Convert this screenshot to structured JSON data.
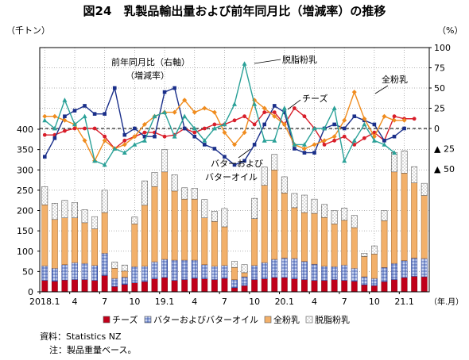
{
  "title": "図24　乳製品輸出量および前年同月比（増減率）の推移",
  "chart_data": {
    "type": "bar+line",
    "left_axis": {
      "unit": "（千トン）",
      "min": 0,
      "max": 400,
      "ticks": [
        0,
        50,
        100,
        150,
        200,
        250,
        300,
        350,
        400
      ]
    },
    "right_axis": {
      "unit": "（%）",
      "min": -50,
      "max": 100,
      "ticks": [
        100,
        75,
        50,
        25,
        0,
        -25,
        -50
      ],
      "tick_labels": [
        "100",
        "75",
        "50",
        "25",
        "0",
        "▲ 25",
        "▲ 50"
      ]
    },
    "x_labels": [
      {
        "index": 0,
        "label": "2018.1"
      },
      {
        "index": 3,
        "label": "4"
      },
      {
        "index": 6,
        "label": "7"
      },
      {
        "index": 9,
        "label": "10"
      },
      {
        "index": 12,
        "label": "19.1"
      },
      {
        "index": 15,
        "label": "4"
      },
      {
        "index": 18,
        "label": "7"
      },
      {
        "index": 21,
        "label": "10"
      },
      {
        "index": 24,
        "label": "20.1"
      },
      {
        "index": 27,
        "label": "4"
      },
      {
        "index": 30,
        "label": "7"
      },
      {
        "index": 33,
        "label": "10"
      },
      {
        "index": 36,
        "label": "21.1"
      }
    ],
    "x_unit": "（年.月）",
    "bar_series": [
      {
        "name": "チーズ",
        "color": "#c0001a",
        "values": [
          28,
          26,
          29,
          30,
          30,
          28,
          40,
          13,
          18,
          22,
          25,
          32,
          35,
          28,
          30,
          33,
          32,
          30,
          33,
          10,
          15,
          30,
          32,
          35,
          35,
          32,
          30,
          28,
          28,
          30,
          28,
          26,
          17,
          15,
          25,
          30,
          35,
          38,
          37
        ]
      },
      {
        "name": "バターおよびバターオイル",
        "color": "#2a4aa8",
        "values": [
          36,
          32,
          38,
          42,
          40,
          37,
          55,
          20,
          18,
          40,
          38,
          42,
          45,
          50,
          48,
          45,
          35,
          33,
          32,
          20,
          22,
          35,
          40,
          45,
          48,
          50,
          45,
          40,
          35,
          32,
          38,
          32,
          20,
          18,
          35,
          40,
          42,
          45,
          45
        ]
      },
      {
        "name": "全粉乳",
        "color": "#f2b06a",
        "values": [
          150,
          120,
          115,
          110,
          100,
          90,
          100,
          25,
          15,
          105,
          150,
          185,
          215,
          170,
          150,
          150,
          115,
          110,
          95,
          30,
          10,
          115,
          190,
          220,
          160,
          125,
          120,
          125,
          120,
          105,
          110,
          100,
          50,
          60,
          115,
          225,
          215,
          185,
          155
        ]
      },
      {
        "name": "脱脂粉乳",
        "color": "#ffffff",
        "values": [
          45,
          40,
          43,
          38,
          32,
          30,
          55,
          15,
          15,
          17,
          60,
          35,
          55,
          40,
          28,
          27,
          45,
          25,
          45,
          15,
          20,
          50,
          45,
          38,
          40,
          35,
          43,
          35,
          32,
          33,
          30,
          30,
          8,
          20,
          25,
          48,
          55,
          40,
          30
        ]
      }
    ],
    "line_series": [
      {
        "name": "チーズ",
        "color": "#d81e2a",
        "values": [
          -8,
          -8,
          -3,
          0,
          0,
          0,
          -10,
          -25,
          -15,
          -10,
          -5,
          -5,
          -10,
          -8,
          0,
          -5,
          0,
          5,
          5,
          10,
          15,
          5,
          20,
          20,
          5,
          25,
          15,
          0,
          -20,
          -15,
          -10,
          -20,
          -12,
          -5,
          -15,
          15,
          12,
          12
        ]
      },
      {
        "name": "バターおよびバターオイル",
        "color": "#1a2f8a",
        "values": [
          -35,
          -12,
          15,
          22,
          28,
          18,
          18,
          50,
          -8,
          0,
          -10,
          -10,
          45,
          50,
          0,
          -10,
          -20,
          -25,
          -35,
          -45,
          -40,
          -20,
          5,
          28,
          20,
          -25,
          -30,
          -30,
          0,
          5,
          0,
          15,
          10,
          5,
          -15,
          -10,
          0
        ]
      },
      {
        "name": "全粉乳",
        "color": "#f08c1e",
        "values": [
          15,
          15,
          10,
          5,
          -15,
          -40,
          -15,
          -25,
          -20,
          -10,
          5,
          15,
          20,
          20,
          35,
          20,
          25,
          20,
          -5,
          -20,
          -5,
          35,
          25,
          15,
          5,
          -20,
          -25,
          -20,
          -15,
          -10,
          10,
          45,
          12,
          -10,
          15,
          10,
          10
        ]
      },
      {
        "name": "脱脂粉乳",
        "color": "#2aa198",
        "values": [
          10,
          0,
          35,
          5,
          15,
          -40,
          -45,
          -25,
          -30,
          -20,
          -15,
          15,
          20,
          -10,
          15,
          0,
          -15,
          0,
          5,
          30,
          80,
          30,
          -15,
          -15,
          25,
          -20,
          -20,
          0,
          0,
          25,
          -40,
          -15,
          5,
          -15,
          -20,
          -30
        ]
      }
    ],
    "annotations": {
      "right_axis_label": "前年同月比（右軸）",
      "right_axis_label2": "（増減率）",
      "skim": "脱脂粉乳",
      "whole": "全粉乳",
      "cheese": "チーズ",
      "butter_line1": "バターおよび",
      "butter_line2": "バターオイル"
    },
    "legend": [
      {
        "label": "チーズ",
        "swatch": "#c0001a"
      },
      {
        "label": "バターおよびバターオイル",
        "swatch": "#2a4aa8"
      },
      {
        "label": "全粉乳",
        "swatch": "#f2b06a"
      },
      {
        "label": "脱脂粉乳",
        "swatch": "#ffffff"
      }
    ]
  },
  "notes": {
    "source": "資料：Statistics NZ",
    "note": "注：製品重量ベース。"
  }
}
